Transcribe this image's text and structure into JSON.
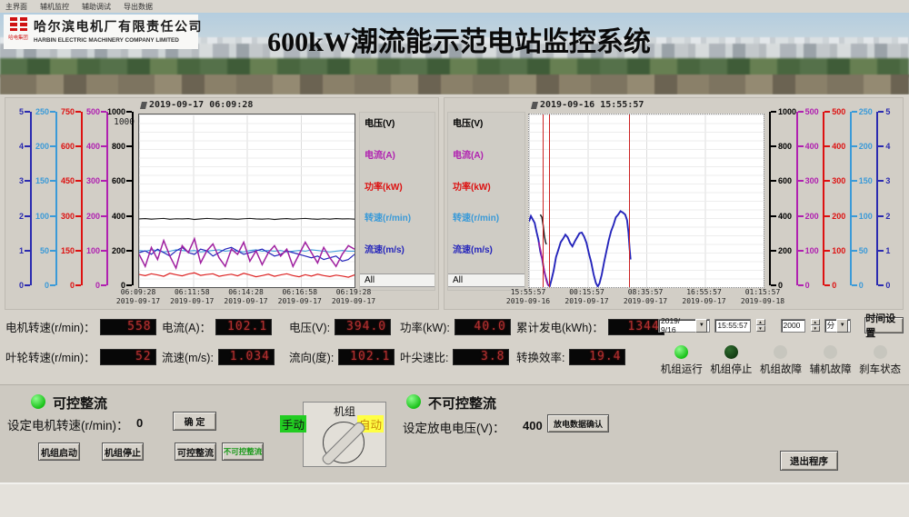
{
  "menu": {
    "items": [
      "主界面",
      "辅机监控",
      "辅助调试",
      "导出数据"
    ]
  },
  "header": {
    "logo_caption": "哈电集团",
    "company_cn": "哈尔滨电机厂有限责任公司",
    "company_en": "HARBIN ELECTRIC MACHINERY COMPANY LIMITED",
    "title": "600kW潮流能示范电站监控系统"
  },
  "chart_data": [
    {
      "type": "line",
      "timestamp": "2019-09-17 06:09:28",
      "legend_position": "right",
      "inner_top_label": "1000",
      "grid": true,
      "x_ticks": [
        [
          "06:09:28",
          "2019-09-17"
        ],
        [
          "06:11:58",
          "2019-09-17"
        ],
        [
          "06:14:28",
          "2019-09-17"
        ],
        [
          "06:16:58",
          "2019-09-17"
        ],
        [
          "06:19:28",
          "2019-09-17"
        ]
      ],
      "legend": [
        [
          "电压(V)",
          "#000000"
        ],
        [
          "电流(A)",
          "#b020b0"
        ],
        [
          "功率(kW)",
          "#dd1111"
        ],
        [
          "转速(r/min)",
          "#3a9ad8"
        ],
        [
          "流速(m/s)",
          "#2525bb"
        ],
        [
          "All",
          "#000000"
        ]
      ],
      "scales": [
        {
          "color": "#2a2ab0",
          "ticks": [
            5,
            4,
            3,
            2,
            1,
            0
          ]
        },
        {
          "color": "#3a9ad8",
          "ticks": [
            250,
            200,
            150,
            100,
            50,
            0
          ]
        },
        {
          "color": "#dd1111",
          "ticks": [
            750,
            600,
            450,
            300,
            150,
            0
          ]
        },
        {
          "color": "#b020b0",
          "ticks": [
            500,
            400,
            300,
            200,
            100,
            0
          ]
        },
        {
          "color": "#000000",
          "ticks": [
            1000,
            800,
            600,
            400,
            200,
            0
          ]
        }
      ],
      "cursors": [],
      "series": [
        {
          "name": "电压(V)",
          "color": "#151515",
          "max": 1000,
          "width": 1.1,
          "values": [
            395,
            397,
            394,
            396,
            398,
            393,
            396,
            395,
            397,
            392,
            395,
            398,
            396,
            394,
            397,
            395,
            393,
            396,
            398,
            395,
            394,
            396,
            392,
            395,
            397,
            394,
            396,
            398,
            395,
            393,
            396,
            394,
            397,
            395,
            396,
            394
          ]
        },
        {
          "name": "转速(r/min)",
          "color": "#3a9ad8",
          "max": 250,
          "width": 1.1,
          "values": [
            53,
            52,
            54,
            53,
            51,
            52,
            54,
            53,
            52,
            53,
            51,
            52,
            53,
            54,
            52,
            53,
            52,
            51,
            53,
            54,
            52,
            53,
            52,
            53,
            51,
            52,
            53,
            52,
            54,
            53,
            52,
            51,
            52,
            53,
            52,
            52
          ]
        },
        {
          "name": "流速(m/s)",
          "color": "#2525bb",
          "max": 5,
          "width": 1.2,
          "values": [
            1.0,
            1.05,
            0.95,
            1.1,
            1.0,
            0.9,
            1.05,
            1.15,
            1.0,
            0.95,
            1.1,
            1.05,
            0.9,
            1.0,
            1.1,
            1.15,
            1.05,
            0.95,
            1.0,
            1.05,
            1.1,
            1.0,
            0.9,
            0.95,
            1.05,
            1.0,
            0.95,
            0.9,
            0.85,
            0.9,
            0.8,
            0.85,
            0.9,
            0.75,
            0.8,
            0.95
          ]
        },
        {
          "name": "电流(A)",
          "color": "#a020a0",
          "max": 500,
          "width": 1.5,
          "values": [
            95,
            60,
            115,
            80,
            135,
            90,
            55,
            120,
            100,
            140,
            70,
            105,
            125,
            85,
            60,
            110,
            95,
            130,
            75,
            105,
            65,
            100,
            120,
            90,
            110,
            60,
            95,
            130,
            100,
            70,
            115,
            85,
            60,
            95,
            120,
            110
          ]
        },
        {
          "name": "功率(kW)",
          "color": "#dd2222",
          "max": 750,
          "width": 1.2,
          "values": [
            55,
            50,
            58,
            53,
            47,
            60,
            54,
            49,
            57,
            62,
            51,
            55,
            58,
            47,
            52,
            56,
            49,
            60,
            53,
            45,
            50,
            56,
            47,
            53,
            58,
            50,
            45,
            54,
            48,
            56,
            50,
            46,
            52,
            48,
            43,
            53
          ]
        }
      ]
    },
    {
      "type": "line",
      "timestamp": "2019-09-16 15:55:57",
      "legend_position": "left",
      "inner_top_label": "1000",
      "grid": true,
      "x_ticks": [
        [
          "15:55:57",
          "2019-09-16"
        ],
        [
          "00:15:57",
          "2019-09-17"
        ],
        [
          "08:35:57",
          "2019-09-17"
        ],
        [
          "16:55:57",
          "2019-09-17"
        ],
        [
          "01:15:57",
          "2019-09-18"
        ]
      ],
      "legend": [
        [
          "电压(V)",
          "#000000"
        ],
        [
          "电流(A)",
          "#b020b0"
        ],
        [
          "功率(kW)",
          "#dd1111"
        ],
        [
          "转速(r/min)",
          "#3a9ad8"
        ],
        [
          "流速(m/s)",
          "#2525bb"
        ],
        [
          "All",
          "#000000"
        ]
      ],
      "scales": [
        {
          "color": "#000000",
          "ticks": [
            1000,
            800,
            600,
            400,
            200,
            0
          ]
        },
        {
          "color": "#b020b0",
          "ticks": [
            500,
            400,
            300,
            200,
            100,
            0
          ]
        },
        {
          "color": "#dd1111",
          "ticks": [
            500,
            400,
            300,
            200,
            100,
            0
          ]
        },
        {
          "color": "#3a9ad8",
          "ticks": [
            250,
            200,
            150,
            100,
            50,
            0
          ]
        },
        {
          "color": "#2a2ab0",
          "ticks": [
            5,
            4,
            3,
            2,
            1,
            0
          ]
        }
      ],
      "cursors": [
        5.8,
        8.5,
        42.7
      ],
      "series": [
        {
          "name": "流速(m/s)",
          "color": "#2525bb",
          "max": 5,
          "width": 1.9,
          "points": [
            [
              0,
              1.9
            ],
            [
              0.8,
              2.06
            ],
            [
              1.6,
              1.96
            ],
            [
              2.4,
              1.86
            ],
            [
              3.2,
              1.6
            ],
            [
              4,
              1.37
            ],
            [
              4.8,
              1.03
            ],
            [
              5.6,
              0.82
            ],
            [
              6.4,
              0.48
            ],
            [
              7.2,
              0.27
            ],
            [
              8,
              0.08
            ],
            [
              8.8,
              0.02
            ],
            [
              9.6,
              0.22
            ],
            [
              10.5,
              0.48
            ],
            [
              11.5,
              0.87
            ],
            [
              12.5,
              1.08
            ],
            [
              13.5,
              1.3
            ],
            [
              14.5,
              1.4
            ],
            [
              15.5,
              1.52
            ],
            [
              16.5,
              1.44
            ],
            [
              17.5,
              1.28
            ],
            [
              18.5,
              1.18
            ],
            [
              19.5,
              1.32
            ],
            [
              20.5,
              1.44
            ],
            [
              21.5,
              1.56
            ],
            [
              22.5,
              1.58
            ],
            [
              23.5,
              1.46
            ],
            [
              24.5,
              1.28
            ],
            [
              25.5,
              0.98
            ],
            [
              26.5,
              0.72
            ],
            [
              27.5,
              0.38
            ],
            [
              28.5,
              0.12
            ],
            [
              29.3,
              0.02
            ],
            [
              30,
              0.1
            ],
            [
              31,
              0.36
            ],
            [
              32,
              0.72
            ],
            [
              33,
              1.04
            ],
            [
              34,
              1.36
            ],
            [
              35,
              1.62
            ],
            [
              36,
              1.8
            ],
            [
              37,
              2.02
            ],
            [
              38,
              2.1
            ],
            [
              39,
              2.2
            ],
            [
              40,
              2.16
            ],
            [
              41,
              2.1
            ],
            [
              41.8,
              1.94
            ],
            [
              42.4,
              1.58
            ],
            [
              42.9,
              1.1
            ],
            [
              43.3,
              0.8
            ]
          ]
        },
        {
          "name": "电流(A)",
          "color": "#a020a0",
          "max": 500,
          "width": 1.5,
          "points": [
            [
              4.2,
              130
            ],
            [
              5.0,
              105
            ],
            [
              5.8,
              75
            ],
            [
              6.6,
              45
            ],
            [
              7.4,
              18
            ],
            [
              8.2,
              4
            ]
          ]
        },
        {
          "name": "电压(V)",
          "color": "#222222",
          "max": 1000,
          "width": 1.5,
          "points": [
            [
              4.8,
              420
            ],
            [
              5.5,
              405
            ],
            [
              6.0,
              360
            ],
            [
              6.5,
              300
            ],
            [
              7.0,
              262
            ],
            [
              7.4,
              248
            ]
          ]
        }
      ]
    }
  ],
  "readouts": [
    [
      [
        "电机转速(r/min)：",
        "558"
      ],
      [
        "电流(A)：",
        "102.1"
      ],
      [
        "电压(V):",
        "394.0"
      ],
      [
        "功率(kW):",
        "40.0"
      ],
      [
        "累计发电(kWh)：",
        "1344"
      ]
    ],
    [
      [
        "叶轮转速(r/min)：",
        "52"
      ],
      [
        "流速(m/s):",
        "1.034"
      ],
      [
        "流向(度):",
        "102.1"
      ],
      [
        "叶尖速比:",
        "3.8"
      ],
      [
        "转换效率:",
        "19.4"
      ]
    ]
  ],
  "datetime": {
    "date": "2019/ 9/16",
    "time": "15:55:57",
    "interval": "2000",
    "unit": "分",
    "set_button": "时间设置"
  },
  "status_leds": [
    [
      "机组运行",
      "on"
    ],
    [
      "机组停止",
      "dim"
    ],
    [
      "机组故障",
      "off"
    ],
    [
      "辅机故障",
      "off"
    ],
    [
      "刹车状态",
      "off"
    ]
  ],
  "control": {
    "left": {
      "led_label": "可控整流",
      "set_label": "设定电机转速(r/min)：",
      "set_value": "0",
      "confirm_button": "确 定",
      "buttons": [
        "机组启动",
        "机组停止",
        "可控整流",
        "不可控整流"
      ]
    },
    "knob": {
      "title": "机组",
      "manual": "手动",
      "auto": "自动"
    },
    "right": {
      "led_label": "不可控整流",
      "set_label": "设定放电电压(V)：",
      "set_value": "400",
      "confirm_button": "放电数据确认"
    },
    "exit_button": "退出程序"
  },
  "colors": {
    "led_on": "#19c119",
    "led_dim": "#143d14",
    "cursor_red": "#cc2222",
    "seg_red": "#b23030"
  }
}
